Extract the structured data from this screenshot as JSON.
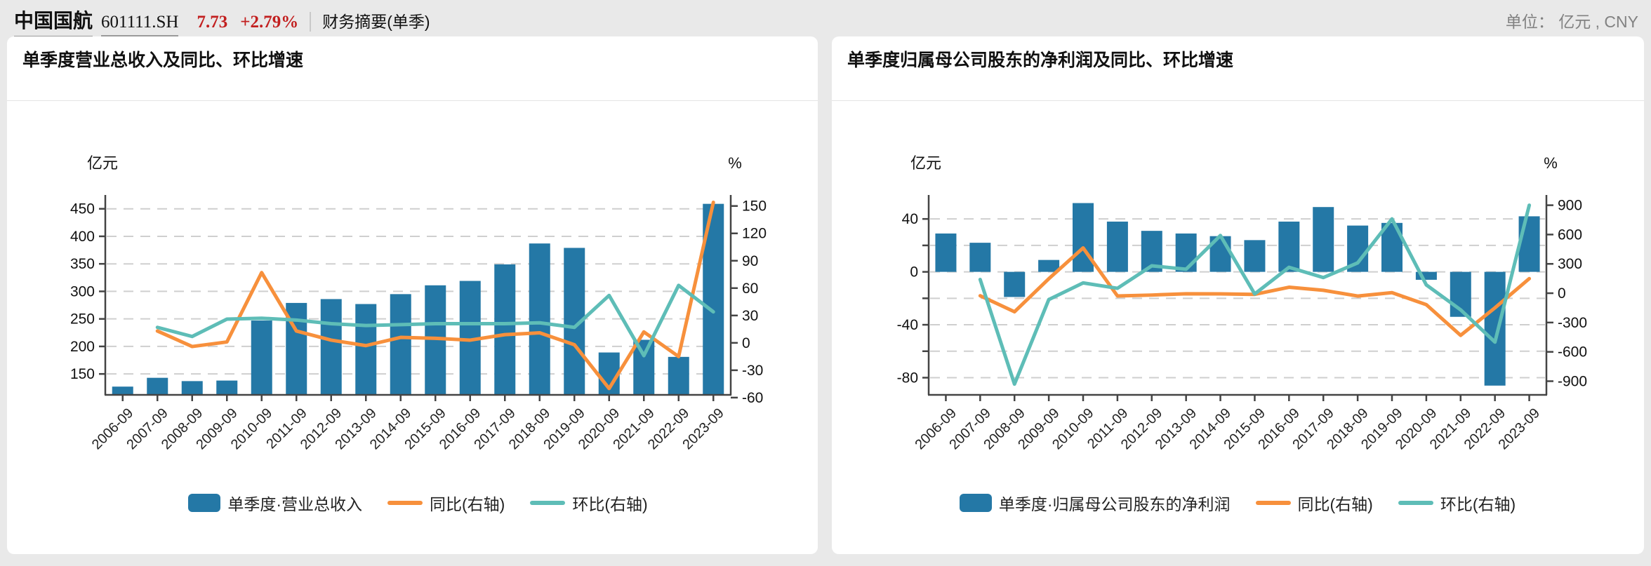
{
  "header": {
    "stock_name": "中国国航",
    "stock_code": "601111.SH",
    "price": "7.73",
    "change_percent": "+2.79%",
    "section_label": "财务摘要(单季)",
    "unit_label": "单位： 亿元 , CNY"
  },
  "colors": {
    "bar_blue": "#2478a6",
    "line_orange": "#f7903c",
    "line_teal": "#5ebdb7",
    "price_red": "#c21f1f",
    "grid_gray": "#cfcfcf",
    "axis_gray": "#444444"
  },
  "chart_data": [
    {
      "type": "bar",
      "subtype": "bar+line dual-axis",
      "title": "单季度营业总收入及同比、环比增速",
      "categories": [
        "2006-09",
        "2007-09",
        "2008-09",
        "2009-09",
        "2010-09",
        "2011-09",
        "2012-09",
        "2013-09",
        "2014-09",
        "2015-09",
        "2016-09",
        "2017-09",
        "2018-09",
        "2019-09",
        "2020-09",
        "2021-09",
        "2022-09",
        "2023-09"
      ],
      "left_axis": {
        "title": "亿元",
        "min": 112,
        "max": 470,
        "ticks": [
          150,
          200,
          250,
          300,
          350,
          400,
          450
        ],
        "tick_labels": [
          "150",
          "200",
          "250",
          "300",
          "350",
          "400",
          "450"
        ]
      },
      "right_axis": {
        "title": "%",
        "min": -57,
        "max": 159,
        "ticks": [
          -60,
          -30,
          0,
          30,
          60,
          90,
          120,
          150
        ],
        "tick_labels": [
          "-60",
          "-30",
          "0",
          "30",
          "60",
          "90",
          "120",
          "150"
        ]
      },
      "grid": "dashed horizontal lines on left-axis ticks",
      "legend_position": "bottom-center",
      "series": [
        {
          "name": "单季度·营业总收入",
          "type": "bar",
          "axis": "left",
          "color": "#2478a6",
          "values": [
            127,
            143,
            137,
            138,
            247,
            279,
            286,
            277,
            295,
            311,
            319,
            349,
            387,
            379,
            189,
            212,
            181,
            459
          ]
        },
        {
          "name": "同比(右轴)",
          "type": "line",
          "axis": "right",
          "color": "#f7903c",
          "values": [
            null,
            13,
            -4,
            1,
            77,
            13,
            3,
            -3,
            6,
            5,
            3,
            9,
            11,
            -2,
            -50,
            12,
            -15,
            154
          ]
        },
        {
          "name": "环比(右轴)",
          "type": "line",
          "axis": "right",
          "color": "#5ebdb7",
          "values": [
            null,
            17,
            7,
            26,
            27,
            25,
            21,
            19,
            20,
            21,
            21,
            21,
            22,
            17,
            52,
            -14,
            63,
            34
          ]
        }
      ]
    },
    {
      "type": "bar",
      "subtype": "bar+line dual-axis",
      "title": "单季度归属母公司股东的净利润及同比、环比增速",
      "categories": [
        "2006-09",
        "2007-09",
        "2008-09",
        "2009-09",
        "2010-09",
        "2011-09",
        "2012-09",
        "2013-09",
        "2014-09",
        "2015-09",
        "2016-09",
        "2017-09",
        "2018-09",
        "2019-09",
        "2020-09",
        "2021-09",
        "2022-09",
        "2023-09"
      ],
      "left_axis": {
        "title": "亿元",
        "min": -93,
        "max": 56,
        "ticks": [
          -80,
          -60,
          -40,
          -20,
          0,
          20,
          40
        ],
        "tick_labels": [
          "-80",
          "",
          "-40",
          "",
          "0",
          "",
          "40"
        ]
      },
      "right_axis": {
        "title": "%",
        "min": -1040,
        "max": 976,
        "ticks": [
          -900,
          -600,
          -300,
          0,
          300,
          600,
          900
        ],
        "tick_labels": [
          "-900",
          "-600",
          "-300",
          "0",
          "300",
          "600",
          "900"
        ]
      },
      "grid": "dashed horizontal lines every 20 of left axis",
      "legend_position": "bottom-center",
      "series": [
        {
          "name": "单季度·归属母公司股东的净利润",
          "type": "bar",
          "axis": "left",
          "color": "#2478a6",
          "values": [
            29,
            22,
            -19,
            9,
            52,
            38,
            31,
            29,
            27,
            24,
            38,
            49,
            35,
            37,
            -6,
            -34,
            -86,
            42
          ]
        },
        {
          "name": "同比(右轴)",
          "type": "line",
          "axis": "right",
          "color": "#f7903c",
          "values": [
            null,
            -26,
            -190,
            148,
            463,
            -28,
            -19,
            -6,
            -7,
            -12,
            61,
            30,
            -29,
            6,
            -117,
            -431,
            -150,
            149
          ]
        },
        {
          "name": "环比(右轴)",
          "type": "line",
          "axis": "right",
          "color": "#5ebdb7",
          "values": [
            null,
            140,
            -930,
            -65,
            105,
            50,
            280,
            245,
            590,
            -8,
            265,
            160,
            310,
            760,
            85,
            -170,
            -500,
            900
          ]
        }
      ]
    }
  ]
}
